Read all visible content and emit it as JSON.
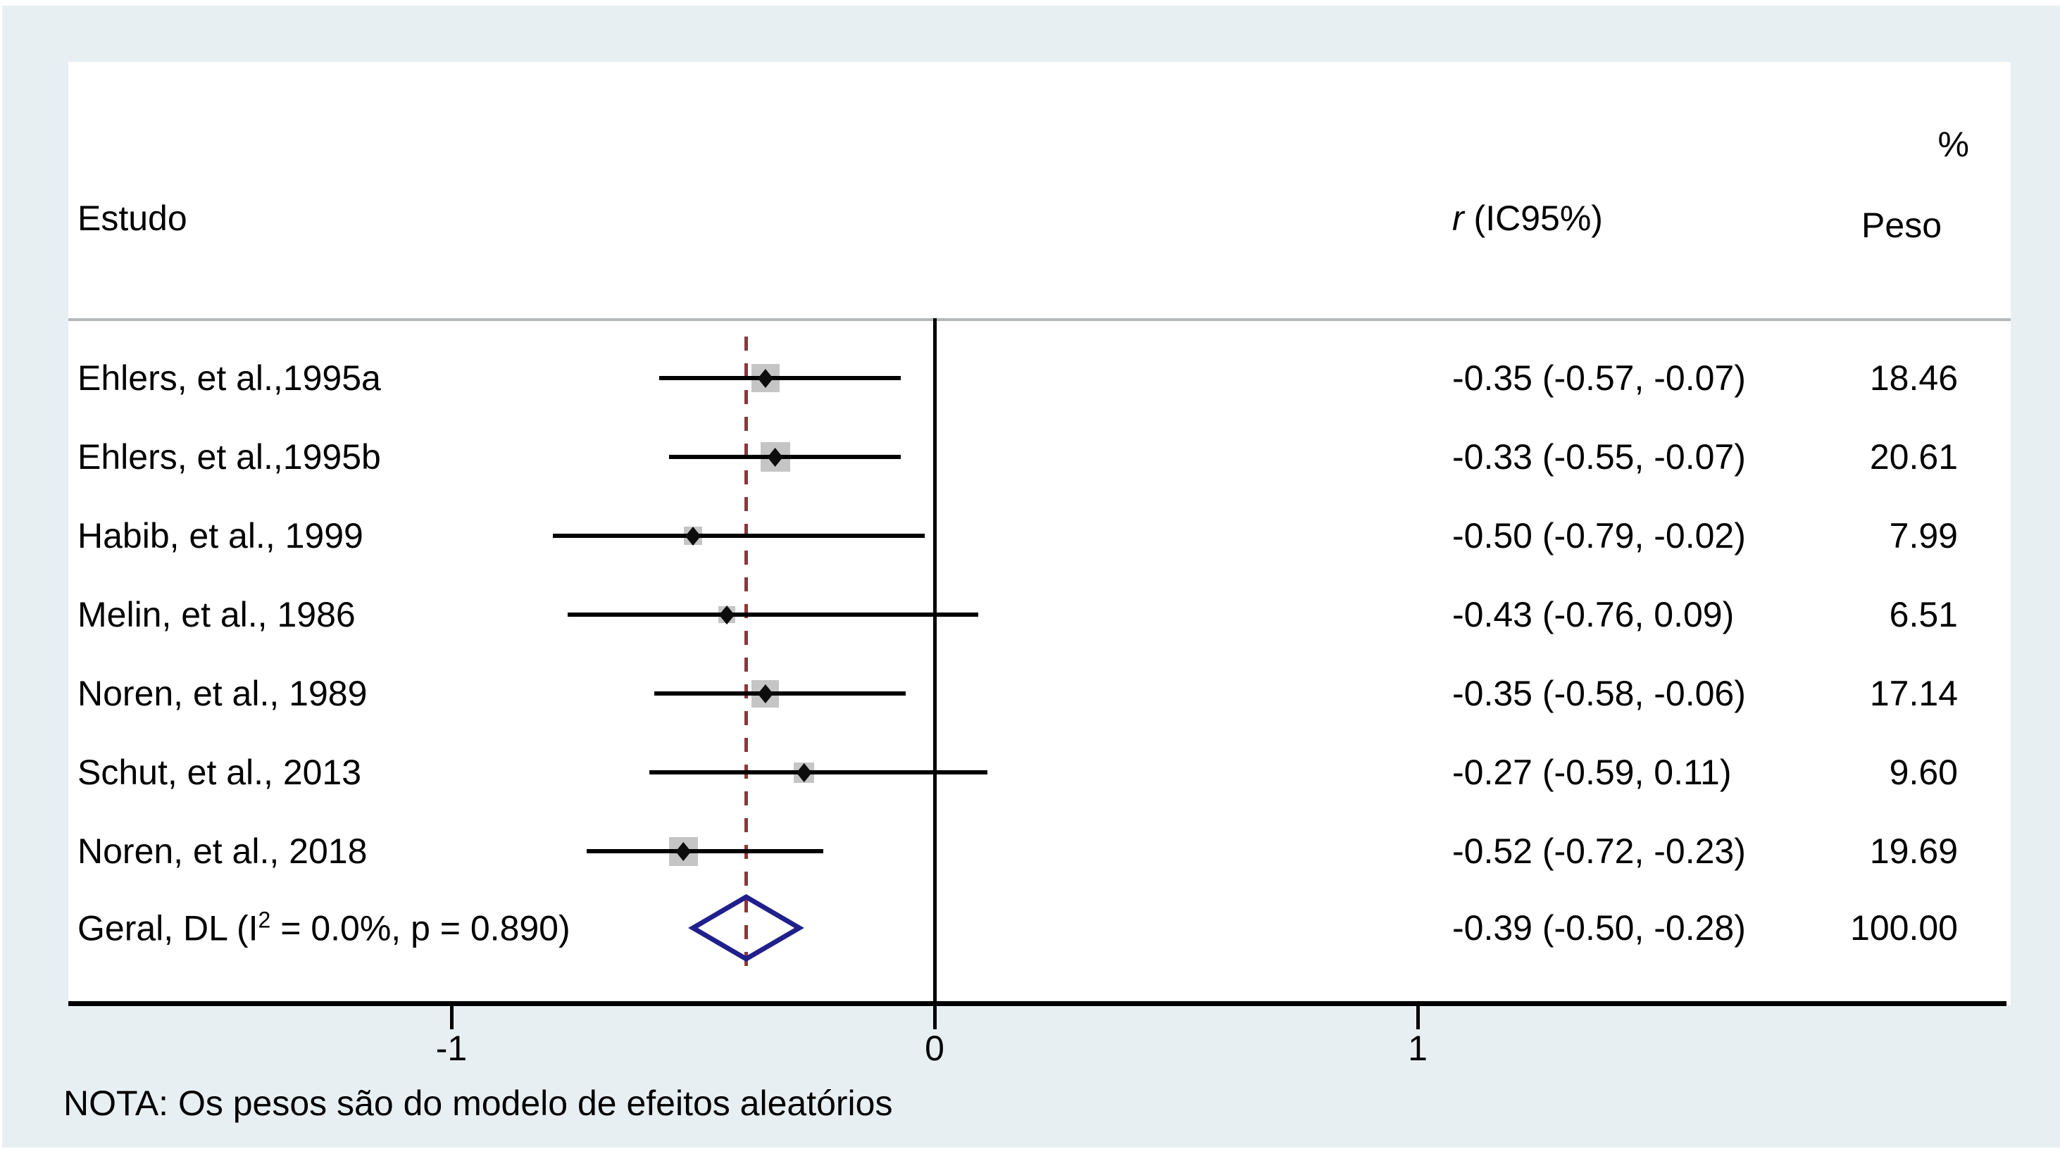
{
  "header": {
    "study": "Estudo",
    "effect_r": "r",
    "effect_rest": " (IC95%)",
    "percent": "%",
    "weight": "Peso"
  },
  "note": "NOTA: Os pesos são do modelo de efeitos aleatórios",
  "colors": {
    "background": "#e8eff2",
    "panel": "#ffffff",
    "separator": "#b3b8ba",
    "line": "#000000",
    "square": "#c5c5c5",
    "point": "#0d0d0d",
    "pooled_dashed": "#90353B",
    "diamond": "#20208c"
  },
  "chart_data": {
    "type": "forest",
    "title": "",
    "xlabel": "",
    "x_range": [
      -1.8,
      2.2
    ],
    "null_line_value": 0,
    "pooled_line_value": -0.39,
    "grid": false,
    "x_ticks": [
      {
        "value": -1,
        "label": "-1"
      },
      {
        "value": 0,
        "label": "0"
      },
      {
        "value": 1,
        "label": "1"
      }
    ],
    "studies": [
      {
        "label": "Ehlers, et al.,1995a",
        "r": -0.35,
        "ci_low": -0.57,
        "ci_high": -0.07,
        "weight": 18.46,
        "effect_text": "-0.35 (-0.57, -0.07)",
        "weight_text": "18.46"
      },
      {
        "label": "Ehlers, et al.,1995b",
        "r": -0.33,
        "ci_low": -0.55,
        "ci_high": -0.07,
        "weight": 20.61,
        "effect_text": "-0.33 (-0.55, -0.07)",
        "weight_text": "20.61"
      },
      {
        "label": "Habib, et al., 1999",
        "r": -0.5,
        "ci_low": -0.79,
        "ci_high": -0.02,
        "weight": 7.99,
        "effect_text": "-0.50 (-0.79, -0.02)",
        "weight_text": "7.99"
      },
      {
        "label": "Melin, et al., 1986",
        "r": -0.43,
        "ci_low": -0.76,
        "ci_high": 0.09,
        "weight": 6.51,
        "effect_text": "-0.43 (-0.76, 0.09)",
        "weight_text": "6.51"
      },
      {
        "label": "Noren, et al., 1989",
        "r": -0.35,
        "ci_low": -0.58,
        "ci_high": -0.06,
        "weight": 17.14,
        "effect_text": "-0.35 (-0.58, -0.06)",
        "weight_text": "17.14"
      },
      {
        "label": "Schut, et al., 2013",
        "r": -0.27,
        "ci_low": -0.59,
        "ci_high": 0.11,
        "weight": 9.6,
        "effect_text": "-0.27 (-0.59, 0.11)",
        "weight_text": "9.60"
      },
      {
        "label": "Noren, et al., 2018",
        "r": -0.52,
        "ci_low": -0.72,
        "ci_high": -0.23,
        "weight": 19.69,
        "effect_text": "-0.52 (-0.72, -0.23)",
        "weight_text": "19.69"
      }
    ],
    "overall": {
      "label_pre": "Geral, DL (I",
      "label_sup": "2",
      "label_post": " = 0.0%, p = 0.890)",
      "r": -0.39,
      "ci_low": -0.5,
      "ci_high": -0.28,
      "weight": 100.0,
      "effect_text": "-0.39 (-0.50, -0.28)",
      "weight_text": "100.00"
    }
  }
}
